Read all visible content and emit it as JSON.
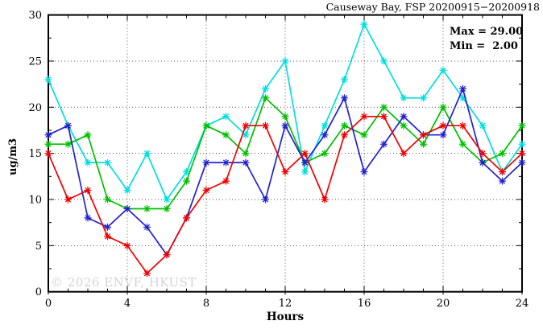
{
  "title": "Causeway Bay, FSP 20200915−20200918",
  "annotation": {
    "max_label": "Max = 29.00",
    "min_label": "Min =  2.00"
  },
  "watermark": "© 2026 ENVF, HKUST",
  "chart_data": {
    "type": "line",
    "title": "Causeway Bay, FSP 20200915−20200918",
    "xlabel": "Hours",
    "ylabel": "ug/m3",
    "xlim": [
      0,
      24
    ],
    "ylim": [
      0,
      30
    ],
    "x_major_ticks": [
      0,
      4,
      8,
      12,
      16,
      20,
      24
    ],
    "y_major_ticks": [
      0,
      5,
      10,
      15,
      20,
      25,
      30
    ],
    "x_gridlines": [
      4,
      8,
      12,
      16,
      20
    ],
    "y_gridlines": [
      5,
      10,
      15,
      20,
      25
    ],
    "x_minor_step": 1,
    "y_minor_step": 2.5,
    "grid": true,
    "legend": "none",
    "max_value": 29.0,
    "min_value": 2.0,
    "x": [
      0,
      1,
      2,
      3,
      4,
      5,
      6,
      7,
      8,
      9,
      10,
      11,
      12,
      13,
      14,
      15,
      16,
      17,
      18,
      19,
      20,
      21,
      22,
      23,
      24
    ],
    "series": [
      {
        "name": "cyan",
        "color": "#00dfdf",
        "values": [
          23,
          18,
          14,
          14,
          11,
          15,
          10,
          13,
          18,
          19,
          17,
          22,
          25,
          13,
          18,
          23,
          29,
          25,
          21,
          21,
          24,
          21,
          18,
          13,
          16
        ]
      },
      {
        "name": "green",
        "color": "#00c000",
        "values": [
          16,
          16,
          17,
          10,
          9,
          9,
          9,
          12,
          18,
          17,
          15,
          21,
          19,
          14,
          15,
          18,
          17,
          20,
          18,
          16,
          20,
          16,
          14,
          15,
          18
        ]
      },
      {
        "name": "blue",
        "color": "#2121cf",
        "values": [
          17,
          18,
          8,
          7,
          9,
          7,
          4,
          8,
          14,
          14,
          14,
          10,
          18,
          14,
          17,
          21,
          13,
          16,
          19,
          17,
          17,
          22,
          14,
          12,
          14
        ]
      },
      {
        "name": "red",
        "color": "#ef0000",
        "values": [
          15,
          10,
          11,
          6,
          5,
          2,
          4,
          8,
          11,
          12,
          18,
          18,
          13,
          15,
          10,
          17,
          19,
          19,
          15,
          17,
          18,
          18,
          15,
          13,
          15
        ]
      }
    ]
  }
}
